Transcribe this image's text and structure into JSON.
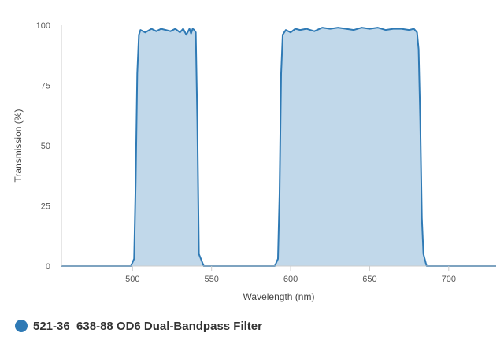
{
  "chart_data": {
    "type": "area",
    "title": "",
    "xlabel": "Wavelength (nm)",
    "ylabel": "Transmission (%)",
    "xlim": [
      455,
      730
    ],
    "ylim": [
      0,
      100
    ],
    "xticks": [
      500,
      550,
      600,
      650,
      700
    ],
    "yticks": [
      0,
      25,
      50,
      75,
      100
    ],
    "grid": false,
    "legend_position": "bottom-left",
    "colors": {
      "line": "#2f7ab5",
      "fill": "#c1d8ea",
      "legend_marker": "#2f7ab5",
      "axis": "#cccccc"
    },
    "series": [
      {
        "name": "521-36_638-88 OD6 Dual-Bandpass Filter",
        "x": [
          455,
          499,
          501,
          502,
          503,
          504,
          505,
          508,
          512,
          515,
          518,
          521,
          524,
          527,
          530,
          532,
          534,
          536,
          537,
          538,
          539,
          540,
          541,
          542,
          545,
          590,
          592,
          593,
          594,
          595,
          597,
          600,
          603,
          606,
          610,
          615,
          620,
          625,
          630,
          635,
          640,
          645,
          650,
          655,
          660,
          665,
          670,
          675,
          678,
          680,
          681,
          682,
          683,
          684,
          686,
          730
        ],
        "y": [
          0,
          0,
          3,
          35,
          80,
          96,
          98,
          97,
          98.5,
          97.5,
          98.5,
          98,
          97.5,
          98.5,
          97,
          98.5,
          96,
          98.5,
          96.5,
          98.5,
          98,
          97,
          60,
          5,
          0,
          0,
          3,
          30,
          80,
          96,
          98,
          97,
          98.5,
          98,
          98.5,
          97.5,
          99,
          98.5,
          99,
          98.5,
          98,
          99,
          98.5,
          99,
          98,
          98.5,
          98.5,
          98,
          98.5,
          97,
          90,
          60,
          20,
          5,
          0,
          0
        ]
      }
    ]
  }
}
